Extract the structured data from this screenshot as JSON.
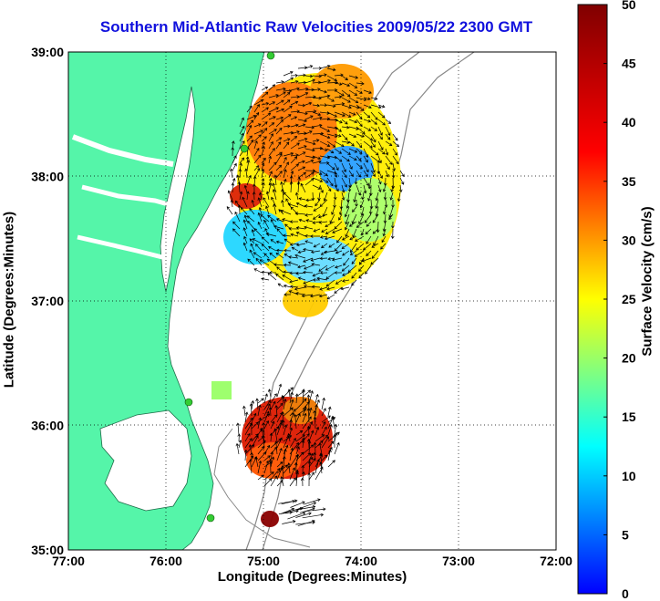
{
  "chart_data": {
    "type": "heatmap",
    "title": "Southern Mid-Atlantic Raw Velocities 2009/05/22 2300 GMT",
    "xlabel": "Longitude (Degrees:Minutes)",
    "ylabel": "Latitude (Degrees:Minutes)",
    "colorbar_label": "Surface Velocity (cm/s)",
    "x_ticks": [
      "77:00",
      "76:00",
      "75:00",
      "74:00",
      "73:00",
      "72:00"
    ],
    "y_ticks": [
      "39:00",
      "38:00",
      "37:00",
      "36:00",
      "35:00"
    ],
    "colorbar_ticks": [
      "0",
      "5",
      "10",
      "15",
      "20",
      "25",
      "30",
      "35",
      "40",
      "45",
      "50"
    ],
    "xlim": [
      -77,
      -72
    ],
    "ylim": [
      35,
      39
    ],
    "clim": [
      0,
      50
    ],
    "grid": true,
    "land_color": "#55f5a9",
    "arrow_color": "#000000"
  }
}
